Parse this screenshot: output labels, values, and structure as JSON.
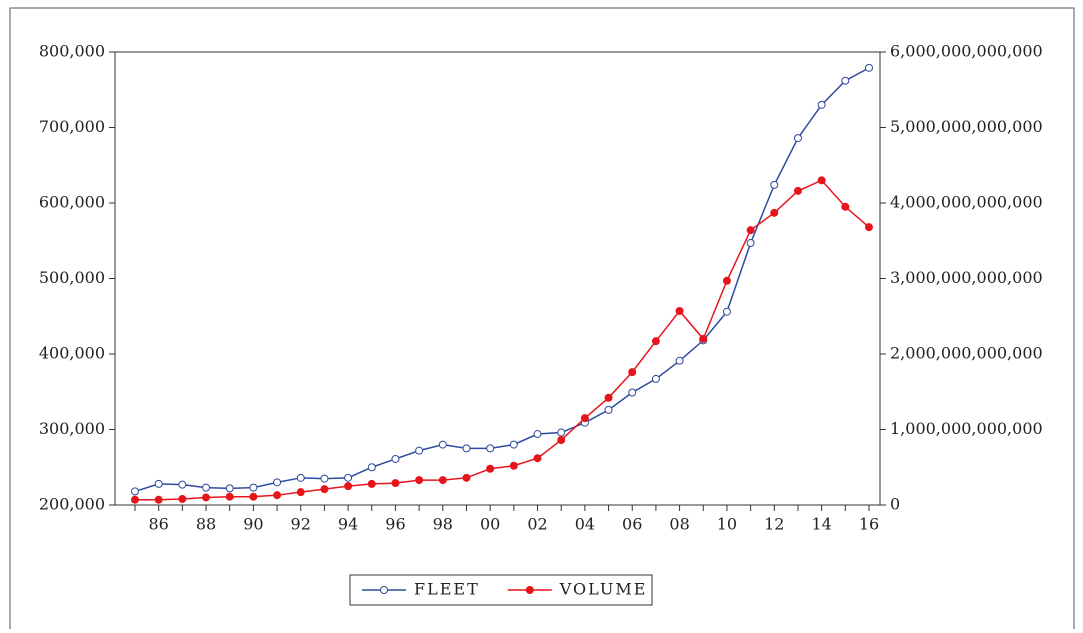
{
  "chart_data": {
    "type": "line",
    "categories": [
      null,
      "86",
      null,
      "88",
      null,
      "90",
      null,
      "92",
      null,
      "94",
      null,
      "96",
      null,
      "98",
      null,
      "00",
      null,
      "02",
      null,
      "04",
      null,
      "06",
      null,
      "08",
      null,
      "10",
      null,
      "12",
      null,
      "14",
      null,
      "16"
    ],
    "series": [
      {
        "name": "FLEET",
        "color": "#2e4a9e",
        "axis": "y",
        "values": [
          218000,
          228000,
          227000,
          223000,
          222000,
          223000,
          230000,
          236000,
          235000,
          236000,
          250000,
          261000,
          272000,
          280000,
          275000,
          275000,
          280000,
          294000,
          296000,
          309000,
          326000,
          349000,
          367000,
          391000,
          418000,
          456000,
          547000,
          624000,
          686000,
          730000,
          762000,
          779000
        ]
      },
      {
        "name": "VOLUME",
        "color": "#e8141c",
        "axis": "y2",
        "values": [
          70000000000,
          70000000000,
          80000000000,
          100000000000,
          110000000000,
          110000000000,
          130000000000,
          170000000000,
          210000000000,
          250000000000,
          280000000000,
          290000000000,
          330000000000,
          330000000000,
          360000000000,
          480000000000,
          520000000000,
          620000000000,
          860000000000,
          1150000000000,
          1420000000000,
          1760000000000,
          2170000000000,
          2570000000000,
          2200000000000,
          2970000000000,
          3640000000000,
          3870000000000,
          4160000000000,
          4300000000000,
          3950000000000,
          3680000000000
        ]
      }
    ],
    "ylim": [
      200000,
      800000
    ],
    "yticks": [
      {
        "value": 200000,
        "label": "200,000"
      },
      {
        "value": 300000,
        "label": "300,000"
      },
      {
        "value": 400000,
        "label": "400,000"
      },
      {
        "value": 500000,
        "label": "500,000"
      },
      {
        "value": 600000,
        "label": "600,000"
      },
      {
        "value": 700000,
        "label": "700,000"
      },
      {
        "value": 800000,
        "label": "800,000"
      }
    ],
    "y2lim": [
      0,
      6000000000000
    ],
    "y2ticks": [
      0,
      {
        "value": 1000000000000,
        "label": "1,000,000,000,000"
      },
      {
        "value": 2000000000000,
        "label": "2,000,000,000,000"
      },
      {
        "value": 3000000000000,
        "label": "3,000,000,000,000"
      },
      {
        "value": 4000000000000,
        "label": "4,000,000,000,000"
      },
      {
        "value": 5000000000000,
        "label": "5,000,000,000,000"
      },
      {
        "value": 6000000000000,
        "label": "6,000,000,000,000"
      }
    ],
    "legend": "bottom"
  }
}
